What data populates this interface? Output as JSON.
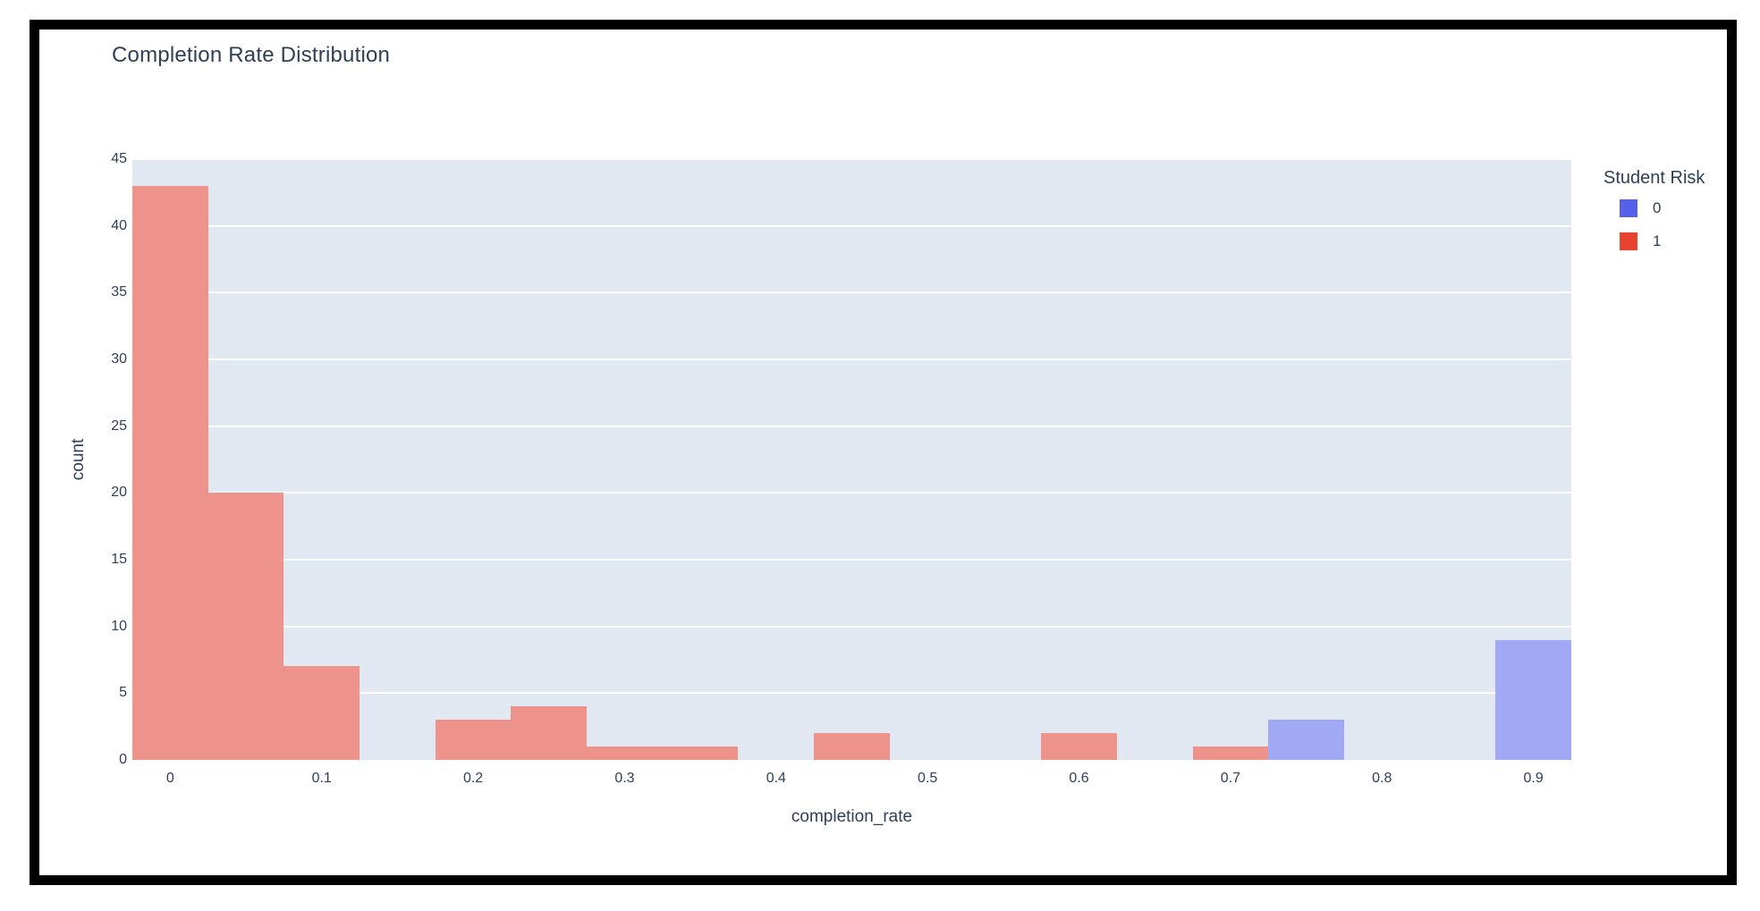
{
  "chart": {
    "title": "Completion Rate Distribution",
    "xlabel": "completion_rate",
    "ylabel": "count"
  },
  "legend": {
    "title": "Student Risk",
    "items": [
      {
        "label": "0",
        "color": "#5560eb"
      },
      {
        "label": "1",
        "color": "#e8432e"
      }
    ]
  },
  "colors": {
    "plot_background": "#e2e8f2",
    "gridline": "#ffffff",
    "text": "#2f3f58",
    "risk0_bar": "#a2a9f4",
    "risk1_bar": "#ee938b",
    "frame_border": "#000000",
    "page_background": "#ffffff"
  },
  "chart_data": {
    "type": "bar",
    "subtype": "overlaid-histogram",
    "title": "Completion Rate Distribution",
    "xlabel": "completion_rate",
    "ylabel": "count",
    "xlim": [
      -0.025,
      0.925
    ],
    "ylim": [
      0,
      45
    ],
    "bin_width": 0.05,
    "grid": true,
    "legend_position": "right",
    "xticks": [
      "0",
      "0.1",
      "0.2",
      "0.3",
      "0.4",
      "0.5",
      "0.6",
      "0.7",
      "0.8",
      "0.9"
    ],
    "yticks": [
      0,
      5,
      10,
      15,
      20,
      25,
      30,
      35,
      40,
      45
    ],
    "series": [
      {
        "name": "1",
        "legend_label": "1",
        "bar_color": "#ee938b",
        "bins": [
          {
            "x0": -0.025,
            "x1": 0.025,
            "count": 43
          },
          {
            "x0": 0.025,
            "x1": 0.075,
            "count": 20
          },
          {
            "x0": 0.075,
            "x1": 0.125,
            "count": 7
          },
          {
            "x0": 0.175,
            "x1": 0.225,
            "count": 3
          },
          {
            "x0": 0.225,
            "x1": 0.275,
            "count": 4
          },
          {
            "x0": 0.275,
            "x1": 0.325,
            "count": 1
          },
          {
            "x0": 0.325,
            "x1": 0.375,
            "count": 1
          },
          {
            "x0": 0.425,
            "x1": 0.475,
            "count": 2
          },
          {
            "x0": 0.575,
            "x1": 0.625,
            "count": 2
          },
          {
            "x0": 0.675,
            "x1": 0.725,
            "count": 1
          }
        ]
      },
      {
        "name": "0",
        "legend_label": "0",
        "bar_color": "#a2a9f4",
        "bins": [
          {
            "x0": 0.725,
            "x1": 0.775,
            "count": 3
          },
          {
            "x0": 0.875,
            "x1": 0.925,
            "count": 9
          }
        ]
      }
    ]
  }
}
